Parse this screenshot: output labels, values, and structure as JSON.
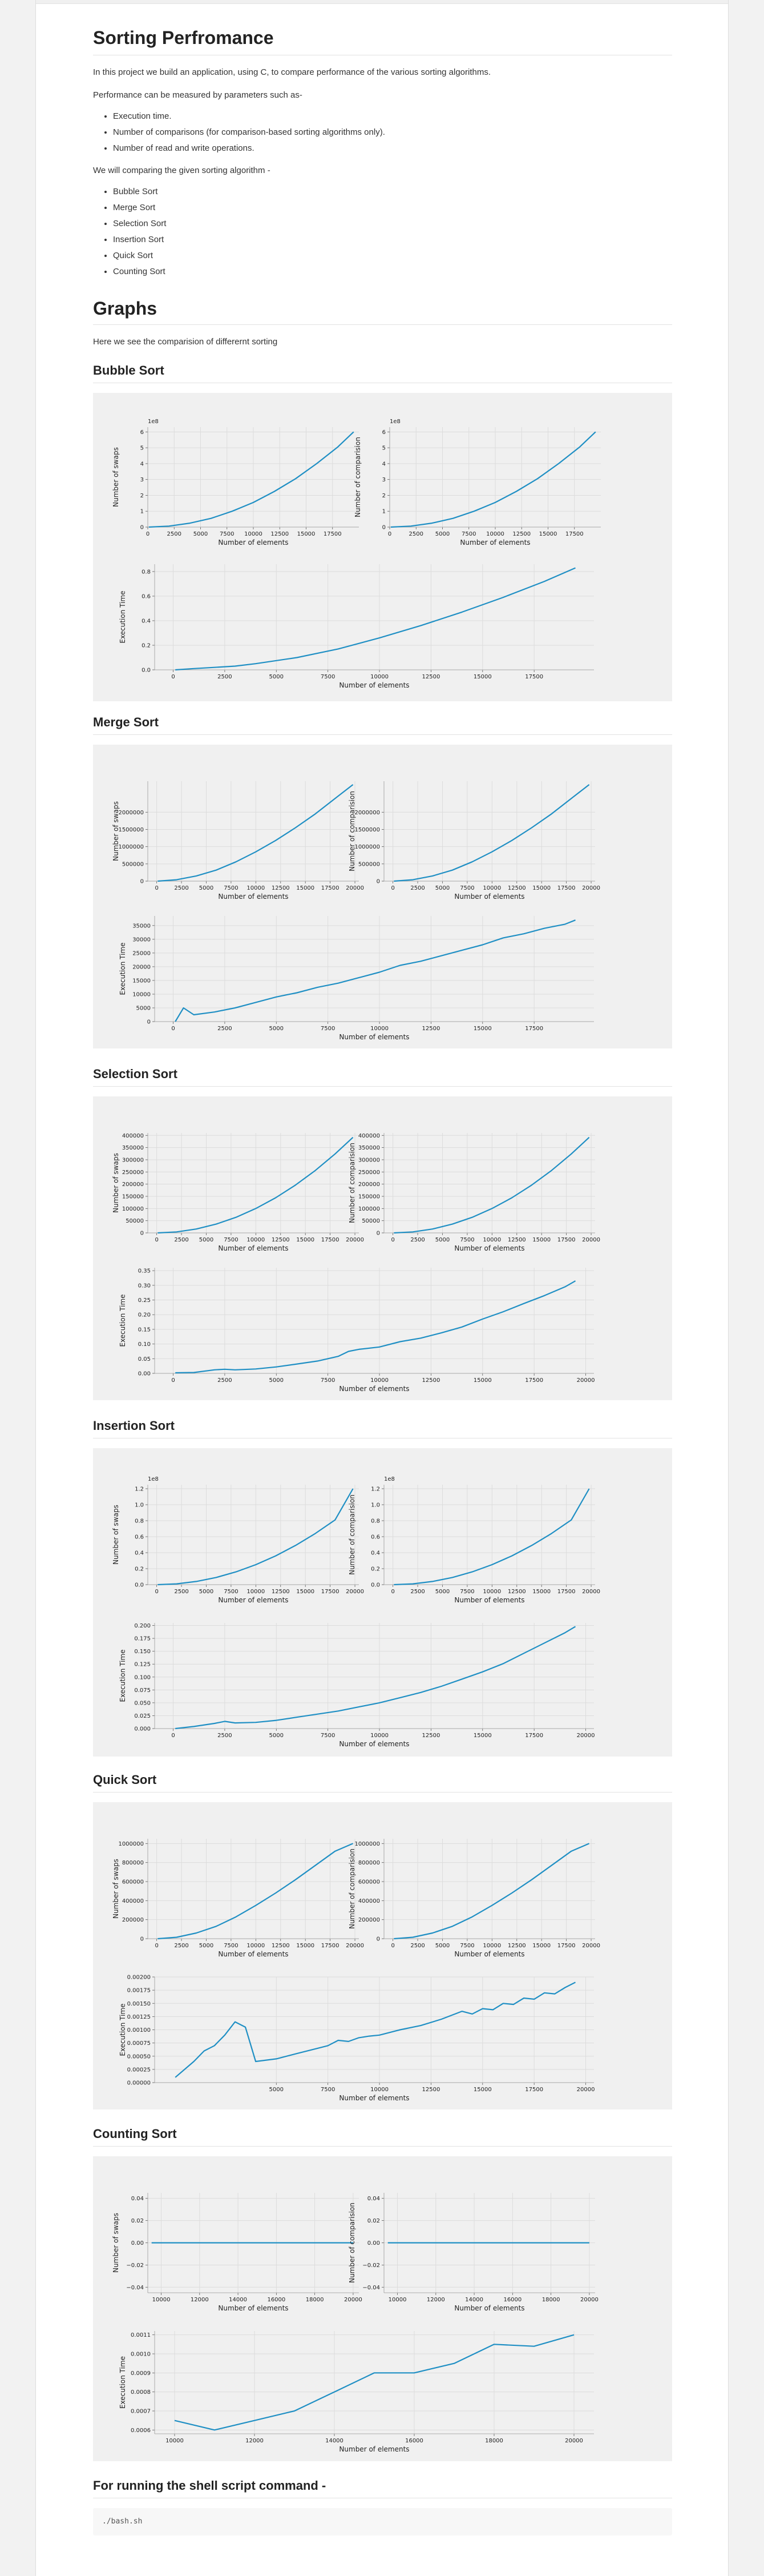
{
  "title": "Sorting Perfromance",
  "intro": "In this project we build an application, using C, to compare performance of the various sorting algorithms.",
  "measured_by": "Performance can be measured by parameters such as-",
  "parameters": [
    "Execution time.",
    "Number of comparisons (for comparison-based sorting algorithms only).",
    "Number of read and write operations."
  ],
  "comparing": "We will comparing the given sorting algorithm -",
  "algorithms": [
    "Bubble Sort",
    "Merge Sort",
    "Selection Sort",
    "Insertion Sort",
    "Quick Sort",
    "Counting Sort"
  ],
  "graphs_heading": "Graphs",
  "graphs_text": "Here we see the comparision of differernt sorting",
  "shell_heading": "For running the shell script command -",
  "shell_command": "./bash.sh",
  "colors": {
    "line": "#1f8fc4",
    "panel": "#f0f0f0"
  },
  "chart_data": [
    {
      "section": "Bubble Sort",
      "type": "line",
      "xlabel": "Number of elements",
      "ylabel": "Number of swaps",
      "offset": "1e8",
      "x": [
        100,
        2000,
        4000,
        6000,
        8000,
        10000,
        12000,
        14000,
        16000,
        18000,
        19500
      ],
      "y": [
        0,
        0.06,
        0.25,
        0.55,
        1.0,
        1.55,
        2.25,
        3.05,
        4.0,
        5.05,
        6.0
      ],
      "xlim": [
        0,
        20000
      ],
      "ylim": [
        0,
        6.3
      ],
      "xticks": [
        0,
        2500,
        5000,
        7500,
        10000,
        12500,
        15000,
        17500
      ],
      "yticks": [
        0,
        1,
        2,
        3,
        4,
        5,
        6
      ]
    },
    {
      "section": "Bubble Sort",
      "type": "line",
      "xlabel": "Number of elements",
      "ylabel": "Number of comparision",
      "offset": "1e8",
      "x": [
        100,
        2000,
        4000,
        6000,
        8000,
        10000,
        12000,
        14000,
        16000,
        18000,
        19500
      ],
      "y": [
        0,
        0.06,
        0.25,
        0.55,
        1.0,
        1.55,
        2.25,
        3.05,
        4.0,
        5.05,
        6.0
      ],
      "xlim": [
        0,
        20000
      ],
      "ylim": [
        0,
        6.3
      ],
      "xticks": [
        0,
        2500,
        5000,
        7500,
        10000,
        12500,
        15000,
        17500
      ],
      "yticks": [
        0,
        1,
        2,
        3,
        4,
        5,
        6
      ]
    },
    {
      "section": "Bubble Sort",
      "type": "line",
      "xlabel": "Number of elements",
      "ylabel": "Execution Time",
      "x": [
        100,
        1000,
        2000,
        3000,
        4000,
        6000,
        8000,
        10000,
        12000,
        14000,
        16000,
        18000,
        19500
      ],
      "y": [
        0,
        0.01,
        0.02,
        0.03,
        0.05,
        0.1,
        0.17,
        0.26,
        0.36,
        0.47,
        0.59,
        0.72,
        0.83
      ],
      "xlim": [
        -900,
        20400
      ],
      "ylim": [
        0,
        0.86
      ],
      "xticks": [
        0,
        2500,
        5000,
        7500,
        10000,
        12500,
        15000,
        17500
      ],
      "yticks": [
        0,
        0.2,
        0.4,
        0.6,
        0.8
      ],
      "ytick_labels": [
        "0.0",
        "0.2",
        "0.4",
        "0.6",
        "0.8"
      ]
    },
    {
      "section": "Merge Sort",
      "type": "line",
      "xlabel": "Number of elements",
      "ylabel": "Number of swaps",
      "x": [
        100,
        2000,
        4000,
        6000,
        8000,
        10000,
        12000,
        14000,
        16000,
        18000,
        19800
      ],
      "y": [
        0,
        40000,
        150000,
        320000,
        560000,
        850000,
        1180000,
        1550000,
        1950000,
        2400000,
        2800000
      ],
      "xlim": [
        -900,
        20400
      ],
      "ylim": [
        0,
        2900000
      ],
      "xticks": [
        0,
        2500,
        5000,
        7500,
        10000,
        12500,
        15000,
        17500,
        20000
      ],
      "yticks": [
        0,
        500000,
        1000000,
        1500000,
        2000000
      ]
    },
    {
      "section": "Merge Sort",
      "type": "line",
      "xlabel": "Number of elements",
      "ylabel": "Number of comparision",
      "x": [
        100,
        2000,
        4000,
        6000,
        8000,
        10000,
        12000,
        14000,
        16000,
        18000,
        19800
      ],
      "y": [
        0,
        40000,
        150000,
        320000,
        560000,
        850000,
        1180000,
        1550000,
        1950000,
        2400000,
        2800000
      ],
      "xlim": [
        -900,
        20400
      ],
      "ylim": [
        0,
        2900000
      ],
      "xticks": [
        0,
        2500,
        5000,
        7500,
        10000,
        12500,
        15000,
        17500,
        20000
      ],
      "yticks": [
        0,
        500000,
        1000000,
        1500000,
        2000000
      ]
    },
    {
      "section": "Merge Sort",
      "type": "line",
      "xlabel": "Number of elements",
      "ylabel": "Execution Time",
      "x": [
        100,
        500,
        1000,
        2000,
        3000,
        4000,
        5000,
        6000,
        7000,
        8000,
        9000,
        10000,
        11000,
        12000,
        13000,
        14000,
        15000,
        16000,
        17000,
        18000,
        19000,
        19500
      ],
      "y": [
        0,
        5000,
        2500,
        3500,
        5000,
        7000,
        9000,
        10500,
        12500,
        14000,
        16000,
        18000,
        20500,
        22000,
        24000,
        26000,
        28000,
        30500,
        32000,
        34000,
        35500,
        37000
      ],
      "xlim": [
        -900,
        20400
      ],
      "ylim": [
        0,
        38500
      ],
      "xticks": [
        0,
        2500,
        5000,
        7500,
        10000,
        12500,
        15000,
        17500
      ],
      "yticks": [
        0,
        5000,
        10000,
        15000,
        20000,
        25000,
        30000,
        35000
      ]
    },
    {
      "section": "Selection Sort",
      "type": "line",
      "xlabel": "Number of elements",
      "ylabel": "Number of swaps",
      "x": [
        100,
        2000,
        4000,
        6000,
        8000,
        10000,
        12000,
        14000,
        16000,
        18000,
        19800
      ],
      "y": [
        0,
        4000,
        16000,
        36000,
        64000,
        100000,
        144000,
        196000,
        256000,
        324000,
        392000
      ],
      "xlim": [
        -900,
        20400
      ],
      "ylim": [
        0,
        410000
      ],
      "xticks": [
        0,
        2500,
        5000,
        7500,
        10000,
        12500,
        15000,
        17500,
        20000
      ],
      "yticks": [
        0,
        50000,
        100000,
        150000,
        200000,
        250000,
        300000,
        350000,
        400000
      ]
    },
    {
      "section": "Selection Sort",
      "type": "line",
      "xlabel": "Number of elements",
      "ylabel": "Number of comparision",
      "x": [
        100,
        2000,
        4000,
        6000,
        8000,
        10000,
        12000,
        14000,
        16000,
        18000,
        19800
      ],
      "y": [
        0,
        4000,
        16000,
        36000,
        64000,
        100000,
        144000,
        196000,
        256000,
        324000,
        392000
      ],
      "xlim": [
        -900,
        20400
      ],
      "ylim": [
        0,
        410000
      ],
      "xticks": [
        0,
        2500,
        5000,
        7500,
        10000,
        12500,
        15000,
        17500,
        20000
      ],
      "yticks": [
        0,
        50000,
        100000,
        150000,
        200000,
        250000,
        300000,
        350000,
        400000
      ]
    },
    {
      "section": "Selection Sort",
      "type": "line",
      "xlabel": "Number of elements",
      "ylabel": "Execution Time",
      "x": [
        100,
        1000,
        2000,
        2500,
        3000,
        4000,
        5000,
        6000,
        7000,
        8000,
        8500,
        9000,
        10000,
        11000,
        12000,
        13000,
        14000,
        15000,
        16000,
        17000,
        18000,
        19000,
        19500
      ],
      "y": [
        0.002,
        0.003,
        0.012,
        0.014,
        0.012,
        0.015,
        0.022,
        0.032,
        0.042,
        0.058,
        0.075,
        0.082,
        0.09,
        0.108,
        0.12,
        0.138,
        0.158,
        0.185,
        0.21,
        0.238,
        0.265,
        0.295,
        0.315
      ],
      "xlim": [
        -900,
        20400
      ],
      "ylim": [
        0,
        0.36
      ],
      "xticks": [
        0,
        2500,
        5000,
        7500,
        10000,
        12500,
        15000,
        17500,
        20000
      ],
      "yticks": [
        0,
        0.05,
        0.1,
        0.15,
        0.2,
        0.25,
        0.3,
        0.35
      ],
      "ytick_labels": [
        "0.00",
        "0.05",
        "0.10",
        "0.15",
        "0.20",
        "0.25",
        "0.30",
        "0.35"
      ]
    },
    {
      "section": "Insertion Sort",
      "type": "line",
      "xlabel": "Number of elements",
      "ylabel": "Number of swaps",
      "offset": "1e8",
      "x": [
        100,
        2000,
        4000,
        6000,
        8000,
        10000,
        12000,
        14000,
        16000,
        18000,
        19800
      ],
      "y": [
        0,
        0.01,
        0.04,
        0.09,
        0.16,
        0.25,
        0.36,
        0.49,
        0.64,
        0.81,
        1.2
      ],
      "xlim": [
        -900,
        20400
      ],
      "ylim": [
        0,
        1.25
      ],
      "xticks": [
        0,
        2500,
        5000,
        7500,
        10000,
        12500,
        15000,
        17500,
        20000
      ],
      "yticks": [
        0,
        0.2,
        0.4,
        0.6,
        0.8,
        1.0,
        1.2
      ],
      "ytick_labels": [
        "0.0",
        "0.2",
        "0.4",
        "0.6",
        "0.8",
        "1.0",
        "1.2"
      ]
    },
    {
      "section": "Insertion Sort",
      "type": "line",
      "xlabel": "Number of elements",
      "ylabel": "Number of comparision",
      "offset": "1e8",
      "x": [
        100,
        2000,
        4000,
        6000,
        8000,
        10000,
        12000,
        14000,
        16000,
        18000,
        19800
      ],
      "y": [
        0,
        0.01,
        0.04,
        0.09,
        0.16,
        0.25,
        0.36,
        0.49,
        0.64,
        0.81,
        1.2
      ],
      "xlim": [
        -900,
        20400
      ],
      "ylim": [
        0,
        1.25
      ],
      "xticks": [
        0,
        2500,
        5000,
        7500,
        10000,
        12500,
        15000,
        17500,
        20000
      ],
      "yticks": [
        0,
        0.2,
        0.4,
        0.6,
        0.8,
        1.0,
        1.2
      ],
      "ytick_labels": [
        "0.0",
        "0.2",
        "0.4",
        "0.6",
        "0.8",
        "1.0",
        "1.2"
      ]
    },
    {
      "section": "Insertion Sort",
      "type": "line",
      "xlabel": "Number of elements",
      "ylabel": "Execution Time",
      "x": [
        100,
        1000,
        2000,
        2500,
        3000,
        4000,
        5000,
        6000,
        7000,
        8000,
        9000,
        10000,
        11000,
        12000,
        13000,
        14000,
        15000,
        16000,
        17000,
        18000,
        19000,
        19500
      ],
      "y": [
        0.0,
        0.004,
        0.01,
        0.014,
        0.011,
        0.012,
        0.016,
        0.022,
        0.028,
        0.034,
        0.042,
        0.05,
        0.06,
        0.07,
        0.082,
        0.096,
        0.11,
        0.126,
        0.146,
        0.166,
        0.186,
        0.198
      ],
      "xlim": [
        -900,
        20400
      ],
      "ylim": [
        0,
        0.205
      ],
      "xticks": [
        0,
        2500,
        5000,
        7500,
        10000,
        12500,
        15000,
        17500,
        20000
      ],
      "yticks": [
        0,
        0.025,
        0.05,
        0.075,
        0.1,
        0.125,
        0.15,
        0.175,
        0.2
      ],
      "ytick_labels": [
        "0.000",
        "0.025",
        "0.050",
        "0.075",
        "0.100",
        "0.125",
        "0.150",
        "0.175",
        "0.200"
      ]
    },
    {
      "section": "Quick Sort",
      "type": "line",
      "xlabel": "Number of elements",
      "ylabel": "Number of swaps",
      "x": [
        100,
        2000,
        4000,
        6000,
        8000,
        10000,
        12000,
        14000,
        16000,
        18000,
        19800
      ],
      "y": [
        0,
        15000,
        60000,
        130000,
        230000,
        350000,
        480000,
        620000,
        770000,
        920000,
        1000000
      ],
      "xlim": [
        -900,
        20400
      ],
      "ylim": [
        0,
        1050000
      ],
      "xticks": [
        0,
        2500,
        5000,
        7500,
        10000,
        12500,
        15000,
        17500,
        20000
      ],
      "yticks": [
        0,
        200000,
        400000,
        600000,
        800000,
        1000000
      ]
    },
    {
      "section": "Quick Sort",
      "type": "line",
      "xlabel": "Number of elements",
      "ylabel": "Number of comparision",
      "x": [
        100,
        2000,
        4000,
        6000,
        8000,
        10000,
        12000,
        14000,
        16000,
        18000,
        19800
      ],
      "y": [
        0,
        15000,
        60000,
        130000,
        230000,
        350000,
        480000,
        620000,
        770000,
        920000,
        1000000
      ],
      "xlim": [
        -900,
        20400
      ],
      "ylim": [
        0,
        1050000
      ],
      "xticks": [
        0,
        2500,
        5000,
        7500,
        10000,
        12500,
        15000,
        17500,
        20000
      ],
      "yticks": [
        0,
        200000,
        400000,
        600000,
        800000,
        1000000
      ]
    },
    {
      "section": "Quick Sort",
      "type": "line",
      "xlabel": "Number of elements",
      "ylabel": "Execution Time",
      "x": [
        100,
        1000,
        1500,
        2000,
        2500,
        3000,
        3500,
        4000,
        5000,
        6000,
        7000,
        7500,
        8000,
        8500,
        9000,
        9500,
        10000,
        11000,
        12000,
        13000,
        14000,
        14500,
        15000,
        15500,
        16000,
        16500,
        17000,
        17500,
        18000,
        18500,
        19000,
        19500
      ],
      "y": [
        0.0001,
        0.0004,
        0.0006,
        0.0007,
        0.0009,
        0.00115,
        0.00105,
        0.0004,
        0.00045,
        0.00055,
        0.00065,
        0.0007,
        0.0008,
        0.00078,
        0.00085,
        0.00088,
        0.0009,
        0.001,
        0.00108,
        0.0012,
        0.00135,
        0.0013,
        0.0014,
        0.00138,
        0.0015,
        0.00148,
        0.0016,
        0.00158,
        0.0017,
        0.00168,
        0.0018,
        0.0019
      ],
      "xlim": [
        -900,
        20400
      ],
      "ylim": [
        0,
        0.002
      ],
      "xticks": [
        5000,
        7500,
        10000,
        12500,
        15000,
        17500,
        20000
      ],
      "yticks": [
        0,
        0.00025,
        0.0005,
        0.00075,
        0.001,
        0.00125,
        0.0015,
        0.00175,
        0.002
      ],
      "ytick_labels": [
        "0.00000",
        "0.00025",
        "0.00050",
        "0.00075",
        "0.00100",
        "0.00125",
        "0.00150",
        "0.00175",
        "0.00200"
      ]
    },
    {
      "section": "Counting Sort",
      "type": "line",
      "xlabel": "Number of elements",
      "ylabel": "Number of swaps",
      "x": [
        9500,
        20000
      ],
      "y": [
        0,
        0
      ],
      "xlim": [
        9300,
        20300
      ],
      "ylim": [
        -0.045,
        0.045
      ],
      "xticks": [
        10000,
        12000,
        14000,
        16000,
        18000,
        20000
      ],
      "yticks": [
        -0.04,
        -0.02,
        0,
        0.02,
        0.04
      ],
      "ytick_labels": [
        "−0.04",
        "−0.02",
        "0.00",
        "0.02",
        "0.04"
      ]
    },
    {
      "section": "Counting Sort",
      "type": "line",
      "xlabel": "Number of elements",
      "ylabel": "Number of comparision",
      "x": [
        9500,
        20000
      ],
      "y": [
        0,
        0
      ],
      "xlim": [
        9300,
        20300
      ],
      "ylim": [
        -0.045,
        0.045
      ],
      "xticks": [
        10000,
        12000,
        14000,
        16000,
        18000,
        20000
      ],
      "yticks": [
        -0.04,
        -0.02,
        0,
        0.02,
        0.04
      ],
      "ytick_labels": [
        "−0.04",
        "−0.02",
        "0.00",
        "0.02",
        "0.04"
      ]
    },
    {
      "section": "Counting Sort",
      "type": "line",
      "xlabel": "Number of elements",
      "ylabel": "Execution Time",
      "x": [
        10000,
        11000,
        12000,
        13000,
        14000,
        15000,
        16000,
        17000,
        18000,
        19000,
        20000
      ],
      "y": [
        0.00065,
        0.0006,
        0.00065,
        0.0007,
        0.0008,
        0.0009,
        0.0009,
        0.00095,
        0.00105,
        0.00104,
        0.0011
      ],
      "xlim": [
        9500,
        20500
      ],
      "ylim": [
        0.00058,
        0.00112
      ],
      "xticks": [
        10000,
        12000,
        14000,
        16000,
        18000,
        20000
      ],
      "yticks": [
        0.0006,
        0.0007,
        0.0008,
        0.0009,
        0.001,
        0.0011
      ],
      "ytick_labels": [
        "0.0006",
        "0.0007",
        "0.0008",
        "0.0009",
        "0.0010",
        "0.0011"
      ]
    }
  ]
}
